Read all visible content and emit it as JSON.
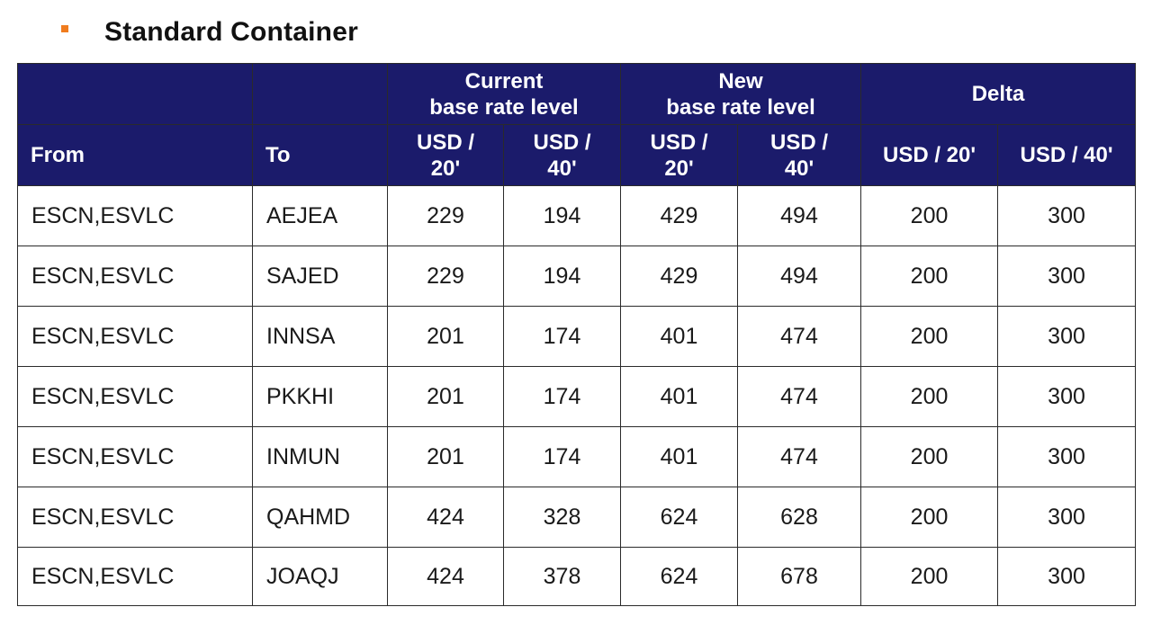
{
  "title": "Standard Container",
  "table": {
    "group_headers": {
      "current": [
        "Current",
        "base rate level"
      ],
      "new": [
        "New",
        "base rate level"
      ],
      "delta": "Delta"
    },
    "columns": {
      "from": "From",
      "to": "To",
      "current_20": [
        "USD /",
        "20'"
      ],
      "current_40": [
        "USD /",
        "40'"
      ],
      "new_20": [
        "USD /",
        "20'"
      ],
      "new_40": [
        "USD /",
        "40'"
      ],
      "delta_20": "USD / 20'",
      "delta_40": "USD / 40'"
    },
    "rows": [
      [
        "ESCN,ESVLC",
        "AEJEA",
        "229",
        "194",
        "429",
        "494",
        "200",
        "300"
      ],
      [
        "ESCN,ESVLC",
        "SAJED",
        "229",
        "194",
        "429",
        "494",
        "200",
        "300"
      ],
      [
        "ESCN,ESVLC",
        "INNSA",
        "201",
        "174",
        "401",
        "474",
        "200",
        "300"
      ],
      [
        "ESCN,ESVLC",
        "PKKHI",
        "201",
        "174",
        "401",
        "474",
        "200",
        "300"
      ],
      [
        "ESCN,ESVLC",
        "INMUN",
        "201",
        "174",
        "401",
        "474",
        "200",
        "300"
      ],
      [
        "ESCN,ESVLC",
        "QAHMD",
        "424",
        "328",
        "624",
        "628",
        "200",
        "300"
      ],
      [
        "ESCN,ESVLC",
        "JOAQJ",
        "424",
        "378",
        "624",
        "678",
        "200",
        "300"
      ]
    ]
  },
  "colors": {
    "header_bg": "#1b1b6b",
    "bullet": "#f07c1e"
  }
}
